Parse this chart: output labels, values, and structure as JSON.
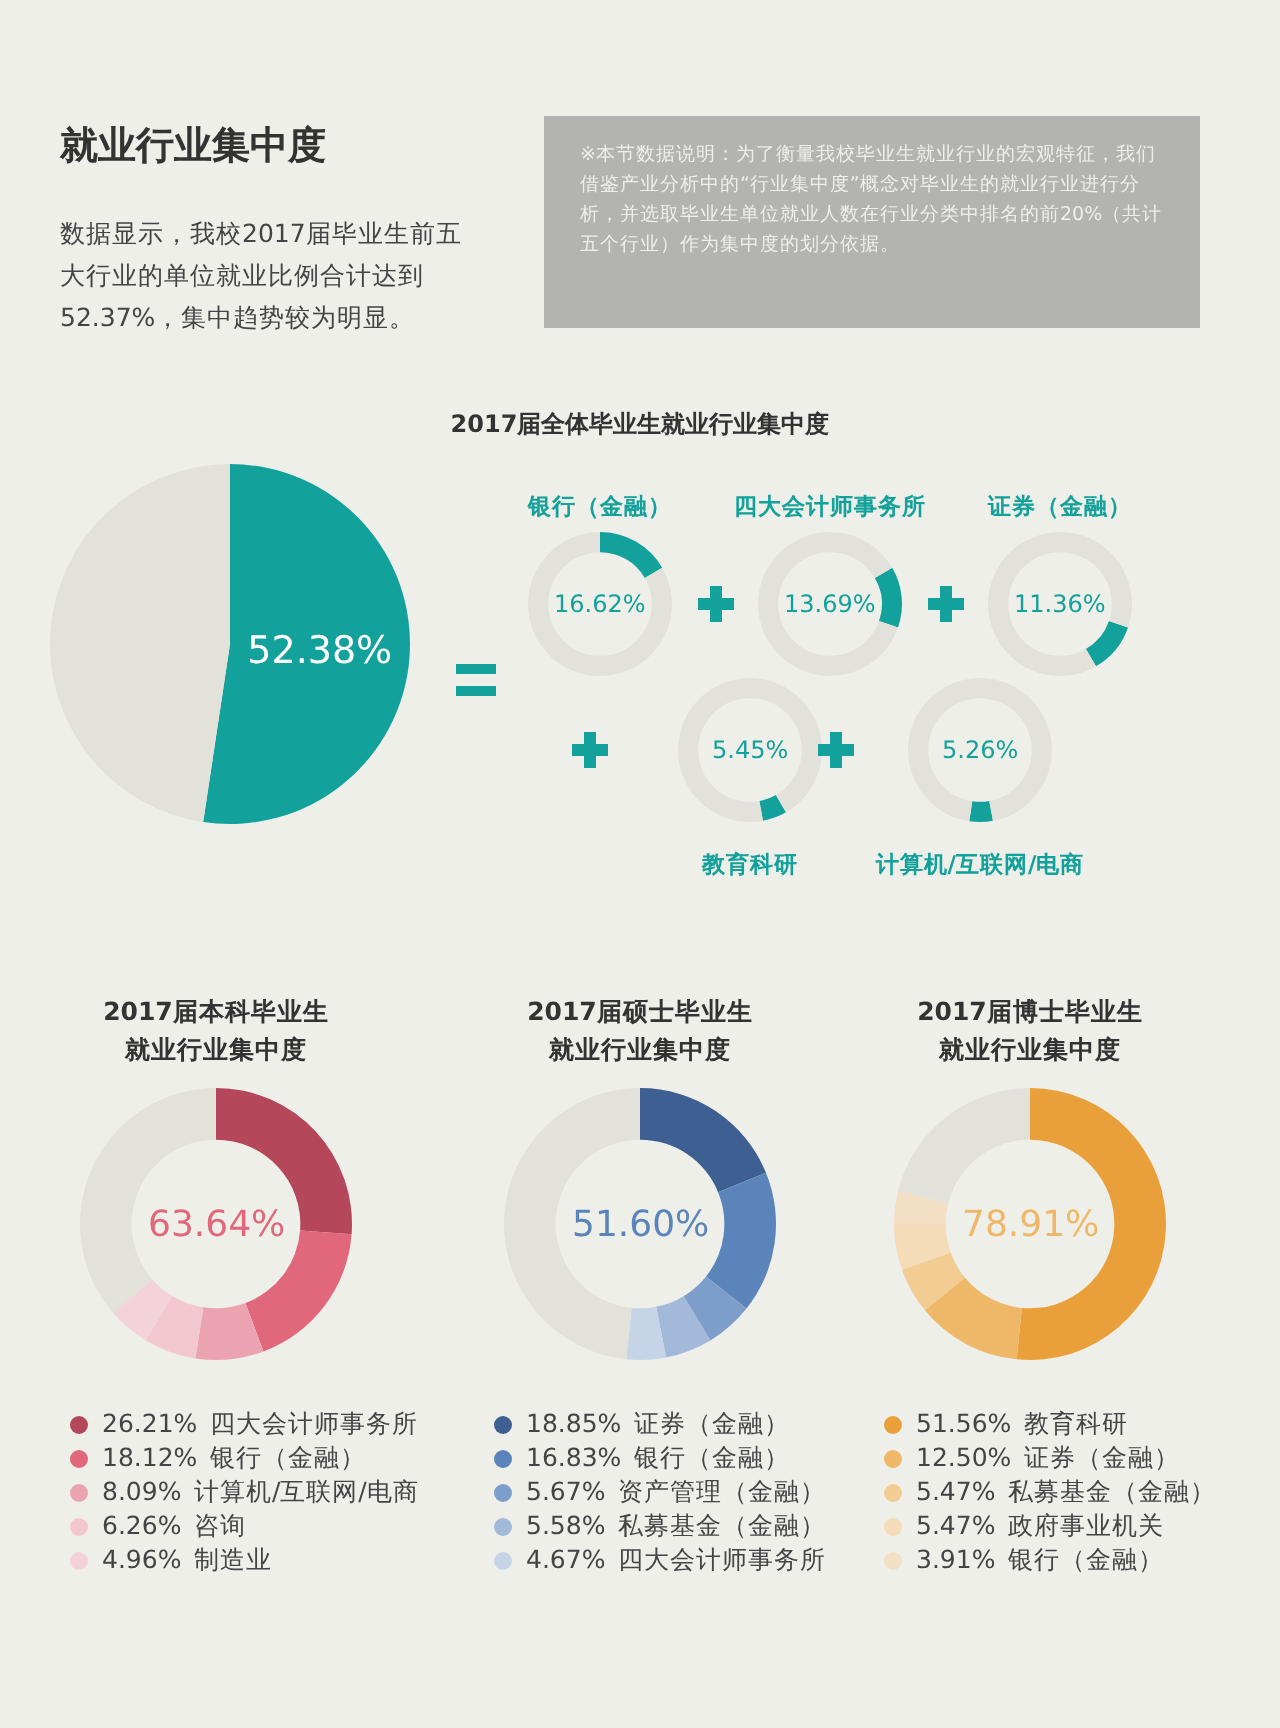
{
  "chart_data": [
    {
      "type": "other",
      "title": "就业行业集中度",
      "annotations": [
        "数据显示，我校2017届毕业生前五大行业的单位就业比例合计达到52.37%，集中趋势较为明显。",
        "※本节数据说明：为了衡量我校毕业生就业行业的宏观特征，我们借鉴产业分析中的“行业集中度”概念对毕业生的就业行业进行分析，并选取毕业生单位就业人数在行业分类中排名的前20%（共计五个行业）作为集中度的划分依据。"
      ]
    },
    {
      "type": "pie",
      "title": "2017届全体毕业生就业行业集中度",
      "categories": [
        null,
        null
      ],
      "values": [
        52.38,
        47.62
      ],
      "colors": [
        "#13a19b",
        "#e2e2db"
      ],
      "value_labels": [
        "52.38%",
        null
      ]
    },
    {
      "type": "donut",
      "title": "银行（金融）",
      "categories": [
        null,
        null
      ],
      "values": [
        16.62,
        83.38
      ],
      "colors": [
        "#13a19b",
        "#e2e2db"
      ],
      "annotations": [
        "16.62%"
      ]
    },
    {
      "type": "donut",
      "title": "四大会计师事务所",
      "categories": [
        null,
        null
      ],
      "values": [
        13.69,
        86.31
      ],
      "colors": [
        "#13a19b",
        "#e2e2db"
      ],
      "annotations": [
        "13.69%"
      ]
    },
    {
      "type": "donut",
      "title": "证券（金融）",
      "categories": [
        null,
        null
      ],
      "values": [
        11.36,
        88.64
      ],
      "colors": [
        "#13a19b",
        "#e2e2db"
      ],
      "annotations": [
        "11.36%"
      ]
    },
    {
      "type": "donut",
      "title": "教育科研",
      "categories": [
        null,
        null
      ],
      "values": [
        5.45,
        94.55
      ],
      "colors": [
        "#13a19b",
        "#e2e2db"
      ],
      "annotations": [
        "5.45%"
      ]
    },
    {
      "type": "donut",
      "title": "计算机/互联网/电商",
      "categories": [
        null,
        null
      ],
      "values": [
        5.26,
        94.74
      ],
      "colors": [
        "#13a19b",
        "#e2e2db"
      ],
      "annotations": [
        "5.26%"
      ]
    },
    {
      "type": "donut",
      "title": "2017届本科毕业生",
      "subtitle": "就业行业集中度",
      "categories": [
        "四大会计师事务所",
        "银行（金融）",
        "计算机/互联网/电商",
        "咨询",
        "制造业",
        null
      ],
      "values": [
        26.21,
        18.12,
        8.09,
        6.26,
        4.96,
        36.36
      ],
      "colors": [
        "#b5475a",
        "#e0687a",
        "#eba3b2",
        "#f3c7d0",
        "#f3d2d9",
        "#e2e2db"
      ],
      "value_labels": [
        "26.21%",
        "18.12%",
        "8.09%",
        "6.26%",
        "4.96%",
        null
      ],
      "annotations": [
        "63.64%"
      ],
      "legend": "bottom"
    },
    {
      "type": "donut",
      "title": "2017届硕士毕业生",
      "subtitle": "就业行业集中度",
      "categories": [
        "证券（金融）",
        "银行（金融）",
        "资产管理（金融）",
        "私募基金（金融）",
        "四大会计师事务所",
        null
      ],
      "values": [
        18.85,
        16.83,
        5.67,
        5.58,
        4.67,
        48.4
      ],
      "colors": [
        "#3d5f91",
        "#5b84bb",
        "#7d9dcb",
        "#a3b9d9",
        "#c5d4e6",
        "#e2e2db"
      ],
      "value_labels": [
        "18.85%",
        "16.83%",
        "5.67%",
        "5.58%",
        "4.67%",
        null
      ],
      "annotations": [
        "51.60%"
      ],
      "legend": "bottom"
    },
    {
      "type": "donut",
      "title": "2017届博士毕业生",
      "subtitle": "就业行业集中度",
      "categories": [
        "教育科研",
        "证券（金融）",
        "私募基金（金融）",
        "政府事业机关",
        "银行（金融）",
        null
      ],
      "values": [
        51.56,
        12.5,
        5.47,
        5.47,
        3.91,
        21.09
      ],
      "colors": [
        "#e9a03a",
        "#efb868",
        "#f2cc92",
        "#f5dcb8",
        "#f3dfc3",
        "#e2e2db"
      ],
      "value_labels": [
        "51.56%",
        "12.50%",
        "5.47%",
        "5.47%",
        "3.91%",
        null
      ],
      "annotations": [
        "78.91%"
      ],
      "legend": "bottom"
    }
  ]
}
